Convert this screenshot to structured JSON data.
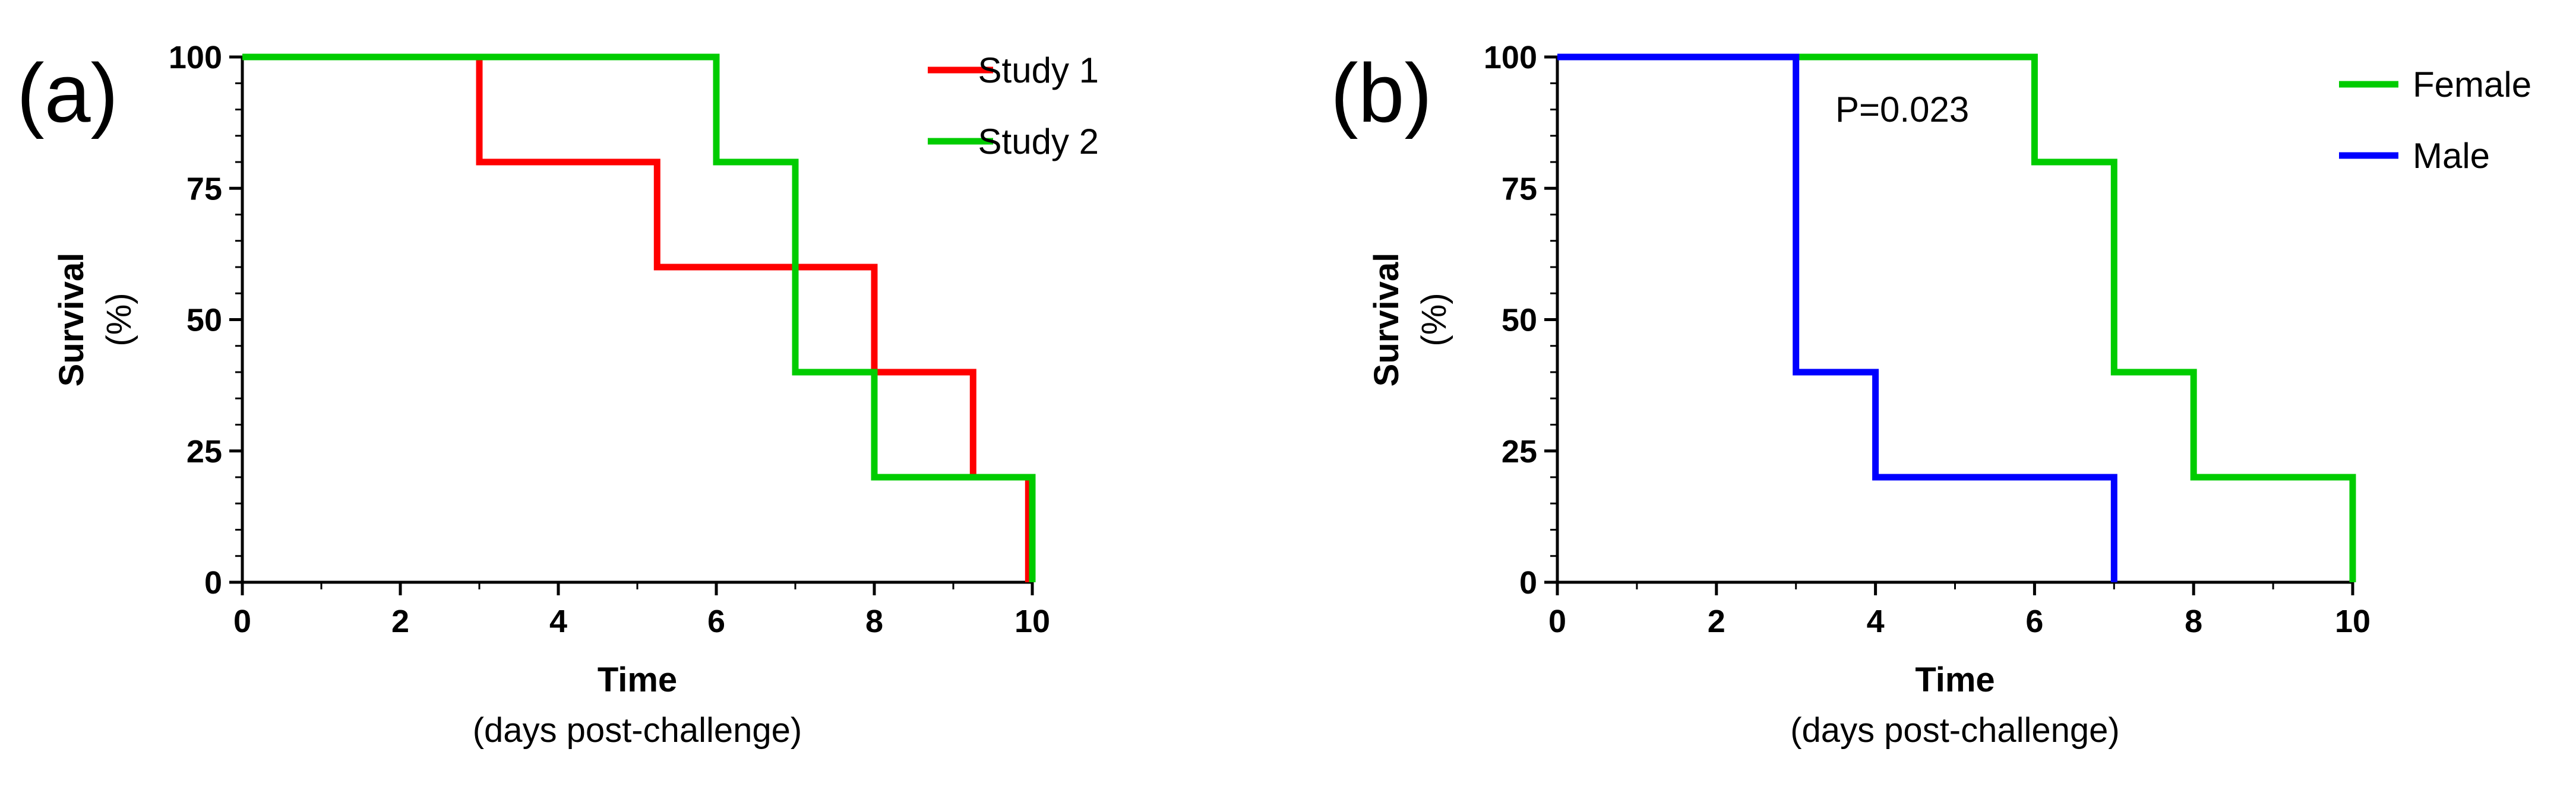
{
  "chart_data": [
    {
      "type": "line",
      "subtype": "kaplan-meier-step",
      "panel_label": "(a)",
      "xlabel": "Time",
      "xlabel_sub": "(days post-challenge)",
      "ylabel": "Survival",
      "ylabel_sub": "(%)",
      "xlim": [
        0,
        10
      ],
      "ylim": [
        0,
        100
      ],
      "x_ticks": [
        "0",
        "2",
        "4",
        "6",
        "8",
        "10"
      ],
      "y_ticks": [
        "0",
        "25",
        "50",
        "75",
        "100"
      ],
      "grid": false,
      "legend_position": "top-right",
      "series": [
        {
          "name": "Study 1",
          "color": "#ff0000",
          "points": [
            [
              0,
              100
            ],
            [
              3,
              100
            ],
            [
              3,
              80
            ],
            [
              5.25,
              80
            ],
            [
              5.25,
              60
            ],
            [
              8,
              60
            ],
            [
              8,
              40
            ],
            [
              9.25,
              40
            ],
            [
              9.25,
              20
            ],
            [
              9.95,
              20
            ],
            [
              9.95,
              0
            ]
          ]
        },
        {
          "name": "Study 2",
          "color": "#00cc00",
          "points": [
            [
              0,
              100
            ],
            [
              6,
              100
            ],
            [
              6,
              80
            ],
            [
              7,
              80
            ],
            [
              7,
              40
            ],
            [
              8,
              40
            ],
            [
              8,
              20
            ],
            [
              10,
              20
            ],
            [
              10,
              0
            ]
          ]
        }
      ]
    },
    {
      "type": "line",
      "subtype": "kaplan-meier-step",
      "panel_label": "(b)",
      "xlabel": "Time",
      "xlabel_sub": "(days post-challenge)",
      "ylabel": "Survival",
      "ylabel_sub": "(%)",
      "xlim": [
        0,
        10
      ],
      "ylim": [
        0,
        100
      ],
      "x_ticks": [
        "0",
        "2",
        "4",
        "6",
        "8",
        "10"
      ],
      "y_ticks": [
        "0",
        "25",
        "50",
        "75",
        "100"
      ],
      "grid": false,
      "legend_position": "top-right",
      "annotation": "P=0.023",
      "series": [
        {
          "name": "Female",
          "color": "#00cc00",
          "points": [
            [
              0,
              100
            ],
            [
              6,
              100
            ],
            [
              6,
              80
            ],
            [
              7,
              80
            ],
            [
              7,
              40
            ],
            [
              8,
              40
            ],
            [
              8,
              20
            ],
            [
              10,
              20
            ],
            [
              10,
              0
            ]
          ]
        },
        {
          "name": "Male",
          "color": "#0000ff",
          "points": [
            [
              0,
              100
            ],
            [
              3,
              100
            ],
            [
              3,
              40
            ],
            [
              4,
              40
            ],
            [
              4,
              20
            ],
            [
              7,
              20
            ],
            [
              7,
              0
            ]
          ]
        }
      ]
    }
  ]
}
